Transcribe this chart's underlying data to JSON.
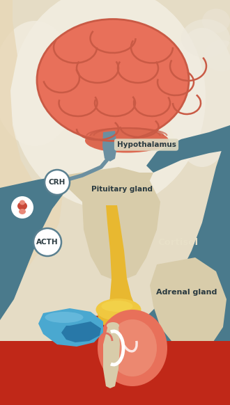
{
  "bg_color": "#e5dcc5",
  "labels": {
    "hypothalamus": "Hypothalamus",
    "crh": "CRH",
    "pituitary": "Pituitary gland",
    "acth": "ACTH",
    "cortisol": "Cortisol",
    "adrenal": "Adrenal gland"
  },
  "colors": {
    "brain_fill": "#e8705a",
    "brain_stroke": "#c95a45",
    "brain_gyri_stroke": "#c95a45",
    "brainstem_gray": "#6b8fa0",
    "teal": "#4a7a8c",
    "beige_bg": "#e5dcc5",
    "beige_body": "#d8ccaa",
    "beige_light": "#e8e0c8",
    "cream_white": "#f0ead8",
    "yellow_adrenal": "#e8b830",
    "yellow_cap": "#f0c840",
    "kidney_color": "#e8705a",
    "kidney_dark": "#d05848",
    "blue_spleen": "#4aa8d0",
    "blue_dark": "#2878a8",
    "red_base": "#c02818",
    "white": "#ffffff",
    "crh_bg": "#ffffff",
    "crh_stroke": "#5a8090",
    "acth_bg": "#ffffff",
    "text_dark": "#2a3a40",
    "text_white": "#e8e0c8",
    "pituitary_icon_red": "#c84838",
    "pituitary_icon_pink": "#e88878"
  }
}
